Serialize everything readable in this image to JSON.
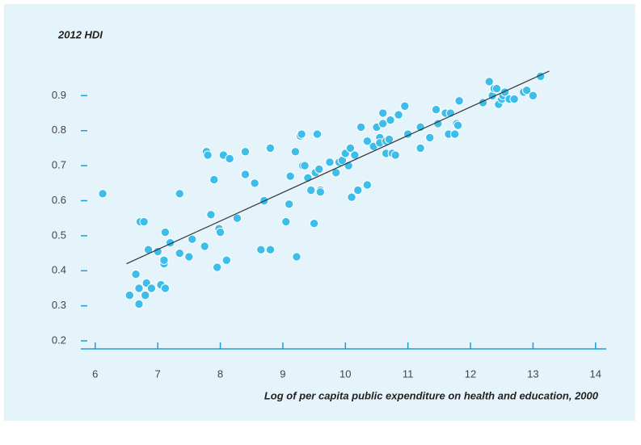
{
  "chart_data": {
    "type": "scatter",
    "title": "2012 HDI",
    "x_label": "Log of per capita public expenditure on health and education, 2000",
    "color": "#3dbde9",
    "x": [
      6.12,
      6.55,
      6.65,
      6.7,
      6.7,
      6.72,
      6.78,
      6.8,
      6.82,
      6.85,
      6.9,
      7.0,
      7.05,
      7.1,
      7.1,
      7.12,
      7.12,
      7.2,
      7.35,
      7.35,
      7.5,
      7.55,
      7.75,
      7.78,
      7.8,
      7.85,
      7.9,
      7.95,
      7.98,
      8.0,
      8.05,
      8.1,
      8.15,
      8.27,
      8.4,
      8.4,
      8.55,
      8.65,
      8.7,
      8.8,
      8.8,
      9.05,
      9.1,
      9.12,
      9.2,
      9.22,
      9.28,
      9.3,
      9.32,
      9.35,
      9.4,
      9.45,
      9.5,
      9.52,
      9.55,
      9.58,
      9.6,
      9.6,
      9.75,
      9.85,
      9.9,
      9.95,
      10.0,
      10.05,
      10.08,
      10.1,
      10.15,
      10.2,
      10.25,
      10.35,
      10.35,
      10.45,
      10.5,
      10.55,
      10.55,
      10.6,
      10.6,
      10.65,
      10.65,
      10.7,
      10.72,
      10.75,
      10.8,
      10.85,
      10.95,
      11.0,
      11.2,
      11.2,
      11.35,
      11.45,
      11.48,
      11.6,
      11.65,
      11.68,
      11.75,
      11.78,
      11.8,
      11.82,
      12.2,
      12.3,
      12.35,
      12.38,
      12.42,
      12.45,
      12.5,
      12.52,
      12.55,
      12.62,
      12.7,
      12.85,
      12.9,
      13.0,
      13.12
    ],
    "values": [
      0.62,
      0.33,
      0.39,
      0.35,
      0.305,
      0.54,
      0.54,
      0.33,
      0.365,
      0.46,
      0.35,
      0.455,
      0.36,
      0.42,
      0.43,
      0.35,
      0.51,
      0.48,
      0.62,
      0.45,
      0.44,
      0.49,
      0.47,
      0.74,
      0.73,
      0.56,
      0.66,
      0.41,
      0.52,
      0.51,
      0.73,
      0.43,
      0.72,
      0.55,
      0.74,
      0.675,
      0.65,
      0.46,
      0.6,
      0.46,
      0.75,
      0.54,
      0.59,
      0.67,
      0.74,
      0.44,
      0.785,
      0.79,
      0.7,
      0.7,
      0.665,
      0.63,
      0.535,
      0.68,
      0.79,
      0.69,
      0.63,
      0.625,
      0.71,
      0.68,
      0.71,
      0.715,
      0.735,
      0.7,
      0.75,
      0.61,
      0.73,
      0.63,
      0.81,
      0.77,
      0.645,
      0.755,
      0.81,
      0.78,
      0.765,
      0.85,
      0.82,
      0.77,
      0.735,
      0.775,
      0.83,
      0.735,
      0.73,
      0.845,
      0.87,
      0.79,
      0.75,
      0.81,
      0.78,
      0.86,
      0.82,
      0.85,
      0.79,
      0.85,
      0.79,
      0.82,
      0.815,
      0.885,
      0.88,
      0.94,
      0.9,
      0.92,
      0.92,
      0.875,
      0.89,
      0.9,
      0.91,
      0.89,
      0.89,
      0.91,
      0.915,
      0.9,
      0.955
    ],
    "trendline": {
      "color": "#333333",
      "x": [
        6.5,
        13.26
      ],
      "values": [
        0.42,
        0.97
      ]
    },
    "xlim": [
      5.77,
      14.3
    ],
    "ylim": [
      0.177,
      0.97
    ],
    "xticks": [
      6,
      7,
      8,
      9,
      10,
      11,
      12,
      13,
      14
    ],
    "yticks": [
      0.2,
      0.3,
      0.4,
      0.5,
      0.6,
      0.7,
      0.8,
      0.9
    ]
  }
}
